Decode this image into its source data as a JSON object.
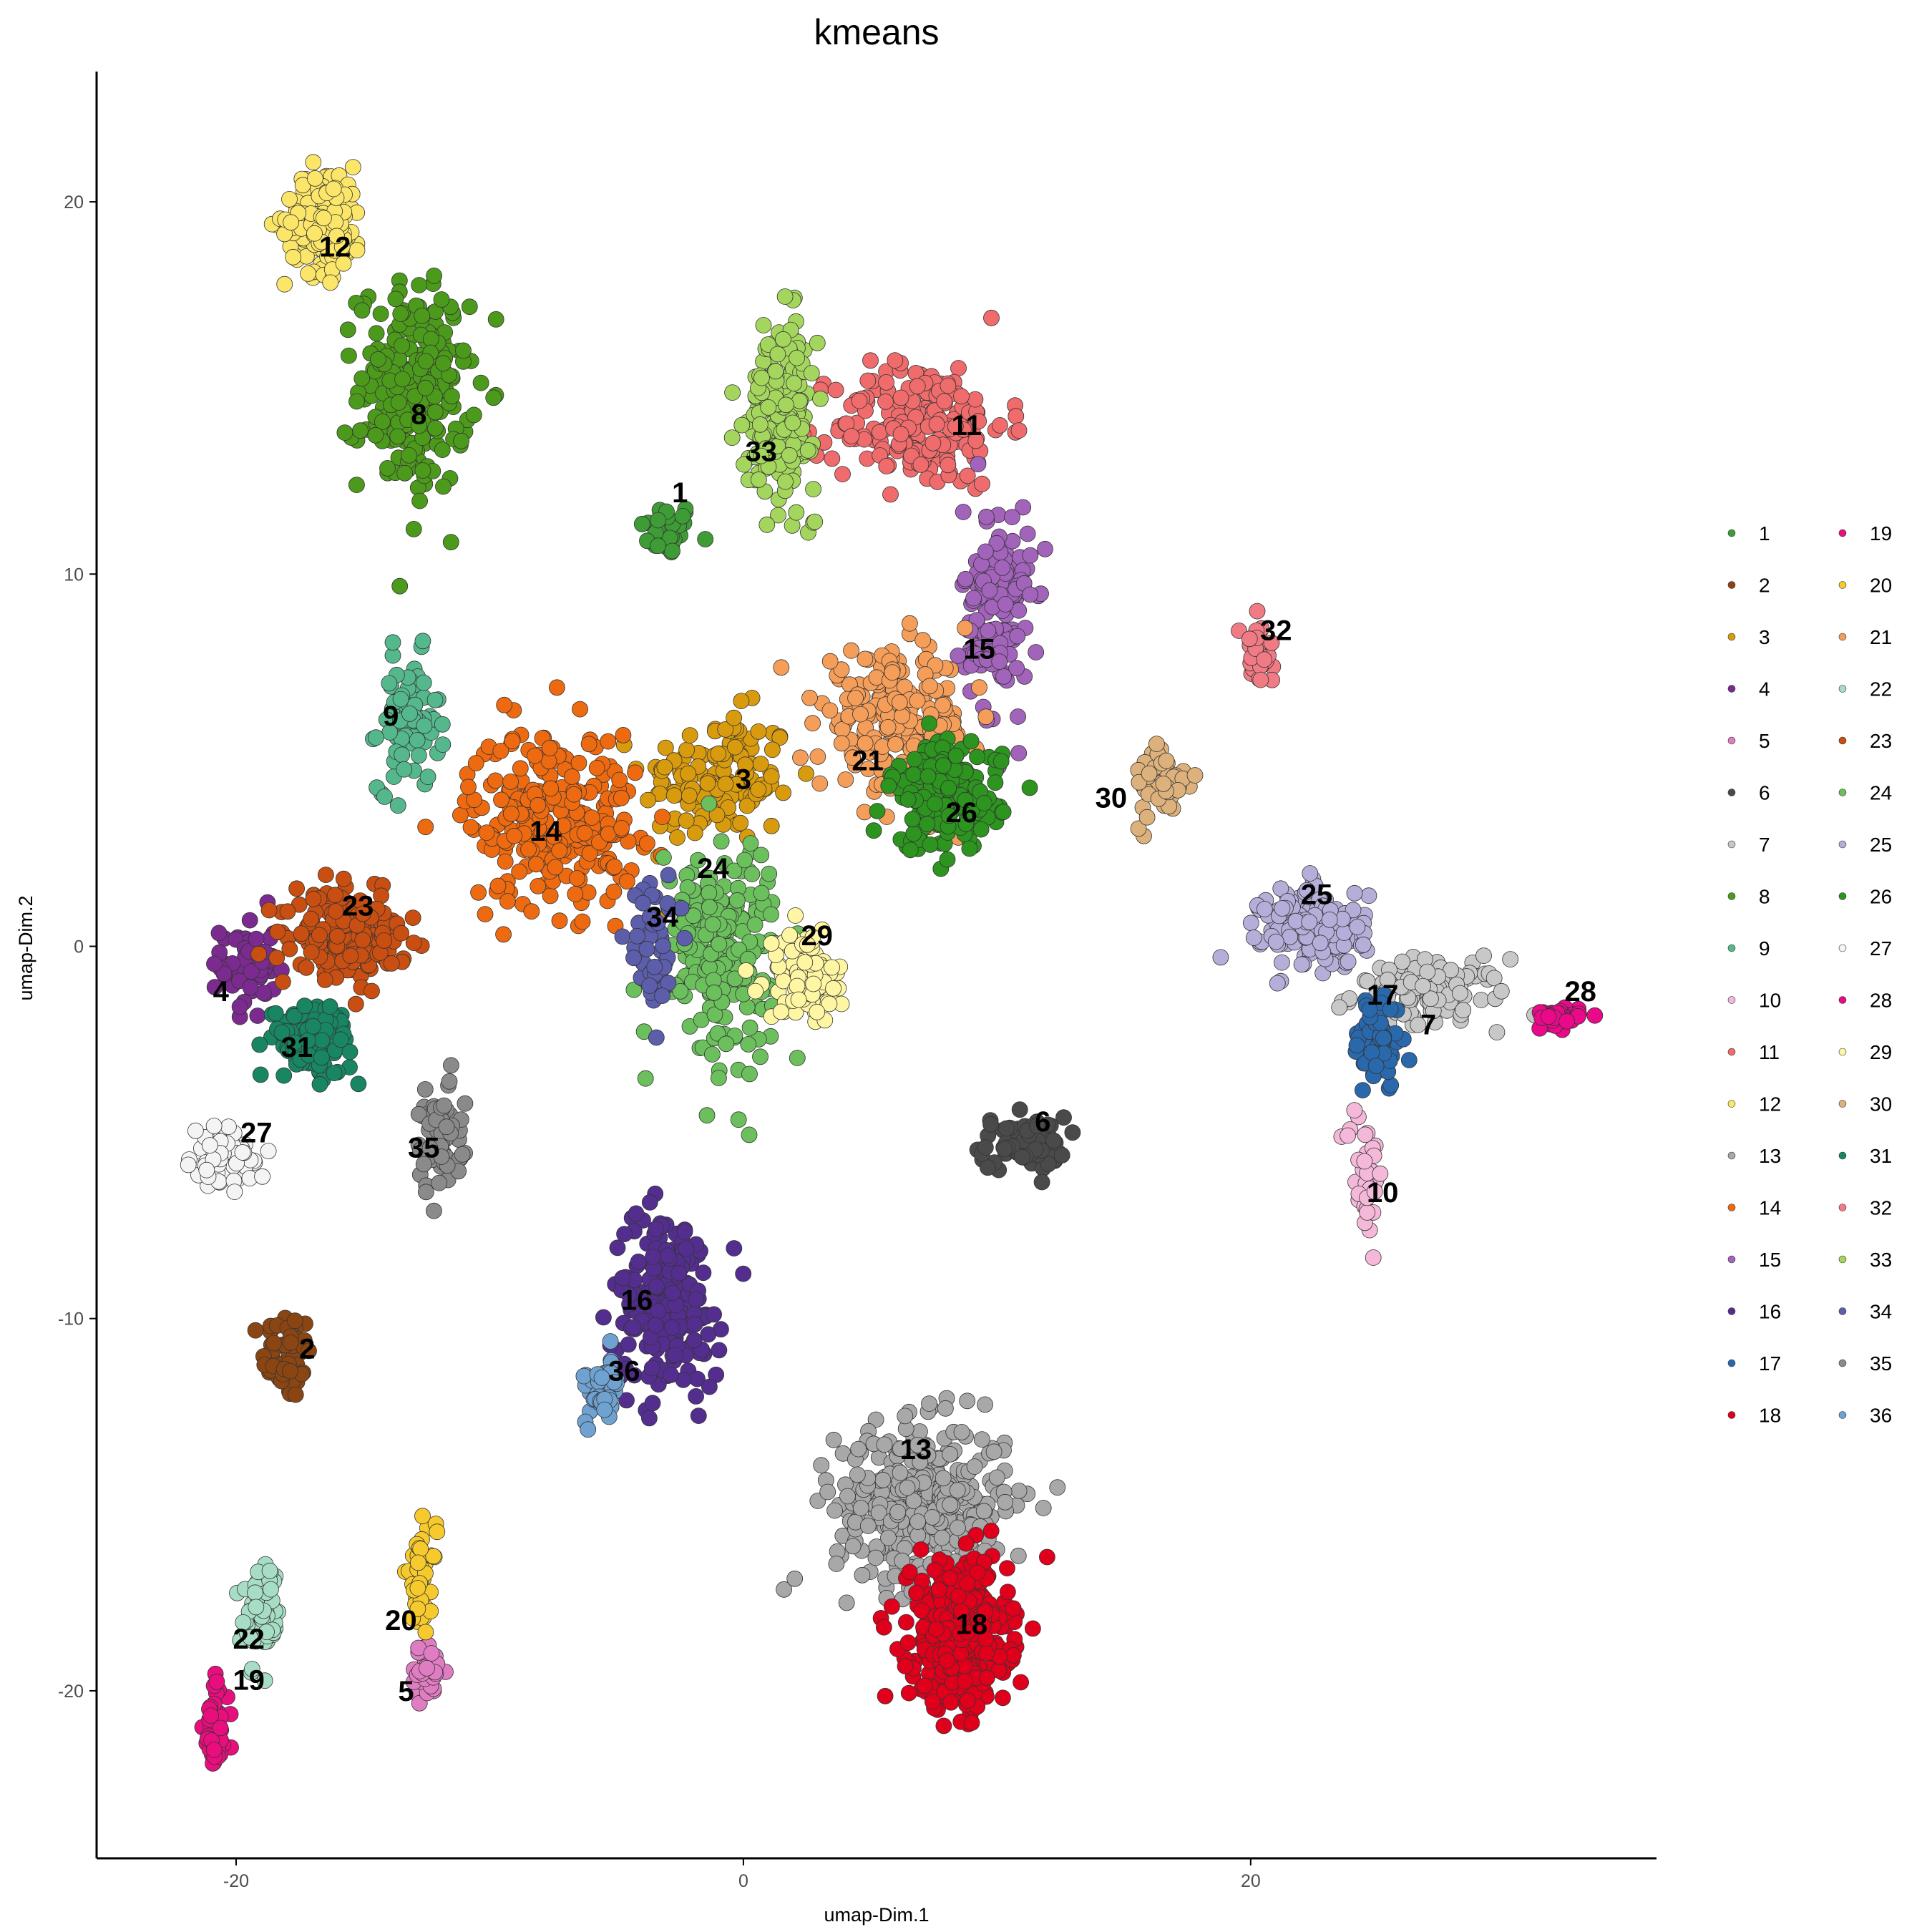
{
  "chart_data": {
    "type": "scatter",
    "title": "kmeans",
    "xlabel": "umap-Dim.1",
    "ylabel": "umap-Dim.2",
    "xlim": [
      -25.5,
      36
    ],
    "ylim": [
      -24.5,
      23.5
    ],
    "x_ticks": [
      -20,
      0,
      20
    ],
    "y_ticks": [
      20,
      10,
      0,
      -10,
      -20
    ],
    "grid": false,
    "legend_position": "right",
    "series": [
      {
        "name": "1",
        "color": "#3E9C36",
        "center": [
          -3,
          11.2
        ],
        "spread": [
          0.9,
          0.6
        ],
        "n": 40
      },
      {
        "name": "2",
        "color": "#8B4513",
        "center": [
          -18,
          -11
        ],
        "spread": [
          0.8,
          1.0
        ],
        "n": 55
      },
      {
        "name": "3",
        "color": "#D99B0E",
        "center": [
          -1,
          4.5
        ],
        "spread": [
          2.5,
          1.5
        ],
        "n": 140
      },
      {
        "name": "4",
        "color": "#7B2B8F",
        "center": [
          -19.5,
          -0.5
        ],
        "spread": [
          0.9,
          1.2
        ],
        "n": 55
      },
      {
        "name": "5",
        "color": "#E07CC2",
        "center": [
          -12.5,
          -19.5
        ],
        "spread": [
          0.6,
          0.6
        ],
        "n": 40
      },
      {
        "name": "6",
        "color": "#4A4A4A",
        "center": [
          11,
          -5.3
        ],
        "spread": [
          1.4,
          0.6
        ],
        "n": 70
      },
      {
        "name": "7",
        "color": "#C8C8C8",
        "center": [
          27,
          -1.3
        ],
        "spread": [
          2.5,
          0.8
        ],
        "n": 110
      },
      {
        "name": "8",
        "color": "#4C9A1B",
        "center": [
          -13,
          15
        ],
        "spread": [
          1.8,
          2.3
        ],
        "n": 230
      },
      {
        "name": "9",
        "color": "#55B88D",
        "center": [
          -13.2,
          6
        ],
        "spread": [
          1.0,
          1.5
        ],
        "n": 80
      },
      {
        "name": "10",
        "color": "#F4B8D8",
        "center": [
          24.5,
          -6
        ],
        "spread": [
          0.6,
          1.5
        ],
        "n": 40
      },
      {
        "name": "11",
        "color": "#F06B6B",
        "center": [
          7,
          14
        ],
        "spread": [
          2.8,
          1.4
        ],
        "n": 200
      },
      {
        "name": "12",
        "color": "#FCE66A",
        "center": [
          -16.5,
          19.5
        ],
        "spread": [
          1.3,
          1.2
        ],
        "n": 150
      },
      {
        "name": "13",
        "color": "#A8A8A8",
        "center": [
          7,
          -15
        ],
        "spread": [
          2.8,
          1.8
        ],
        "n": 380
      },
      {
        "name": "14",
        "color": "#EE6A10",
        "center": [
          -7.5,
          3.5
        ],
        "spread": [
          2.8,
          2.0
        ],
        "n": 260
      },
      {
        "name": "15",
        "color": "#A263BA",
        "center": [
          10,
          9
        ],
        "spread": [
          1.1,
          2.4
        ],
        "n": 150
      },
      {
        "name": "16",
        "color": "#542E8F",
        "center": [
          -3,
          -9.5
        ],
        "spread": [
          1.8,
          2.0
        ],
        "n": 200
      },
      {
        "name": "17",
        "color": "#2A68AC",
        "center": [
          25,
          -2.5
        ],
        "spread": [
          0.8,
          1.1
        ],
        "n": 70
      },
      {
        "name": "18",
        "color": "#E0001B",
        "center": [
          8.5,
          -18.5
        ],
        "spread": [
          1.6,
          1.6
        ],
        "n": 420
      },
      {
        "name": "19",
        "color": "#E80E7D",
        "center": [
          -20.8,
          -21
        ],
        "spread": [
          0.4,
          1.2
        ],
        "n": 45
      },
      {
        "name": "20",
        "color": "#F6CA2D",
        "center": [
          -12.7,
          -17
        ],
        "spread": [
          0.5,
          1.1
        ],
        "n": 45
      },
      {
        "name": "21",
        "color": "#F59E5A",
        "center": [
          6,
          6
        ],
        "spread": [
          2.5,
          1.5
        ],
        "n": 220
      },
      {
        "name": "22",
        "color": "#A6DDC4",
        "center": [
          -19,
          -18
        ],
        "spread": [
          0.6,
          1.1
        ],
        "n": 70
      },
      {
        "name": "23",
        "color": "#C84E11",
        "center": [
          -15.5,
          0.3
        ],
        "spread": [
          1.8,
          0.9
        ],
        "n": 220
      },
      {
        "name": "24",
        "color": "#6BBF5C",
        "center": [
          -1,
          0
        ],
        "spread": [
          2.0,
          2.4
        ],
        "n": 210
      },
      {
        "name": "25",
        "color": "#B4AED9",
        "center": [
          22.5,
          0.5
        ],
        "spread": [
          1.7,
          0.9
        ],
        "n": 170
      },
      {
        "name": "26",
        "color": "#2C941F",
        "center": [
          8,
          4
        ],
        "spread": [
          1.8,
          1.2
        ],
        "n": 190
      },
      {
        "name": "27",
        "color": "#F4F4F4",
        "center": [
          -20.5,
          -5.7
        ],
        "spread": [
          1.0,
          0.6
        ],
        "n": 70
      },
      {
        "name": "28",
        "color": "#E90989",
        "center": [
          32,
          -1.9
        ],
        "spread": [
          0.8,
          0.2
        ],
        "n": 50
      },
      {
        "name": "29",
        "color": "#FEF6A2",
        "center": [
          2.5,
          -0.8
        ],
        "spread": [
          1.3,
          1.0
        ],
        "n": 80
      },
      {
        "name": "30",
        "color": "#DCB17B",
        "center": [
          16.5,
          4.3
        ],
        "spread": [
          0.9,
          1.0
        ],
        "n": 50
      },
      {
        "name": "31",
        "color": "#188663",
        "center": [
          -17,
          -2.5
        ],
        "spread": [
          1.3,
          0.8
        ],
        "n": 130
      },
      {
        "name": "32",
        "color": "#F07B84",
        "center": [
          20.3,
          7.9
        ],
        "spread": [
          0.5,
          0.6
        ],
        "n": 35
      },
      {
        "name": "33",
        "color": "#A4D65D",
        "center": [
          1.5,
          14.5
        ],
        "spread": [
          1.1,
          1.9
        ],
        "n": 200
      },
      {
        "name": "34",
        "color": "#5C5DAB",
        "center": [
          -3.5,
          0
        ],
        "spread": [
          0.8,
          1.5
        ],
        "n": 50
      },
      {
        "name": "35",
        "color": "#8A8A8A",
        "center": [
          -12,
          -5
        ],
        "spread": [
          0.8,
          1.3
        ],
        "n": 65
      },
      {
        "name": "36",
        "color": "#6FA1D1",
        "center": [
          -5.5,
          -12
        ],
        "spread": [
          0.6,
          0.7
        ],
        "n": 55
      }
    ],
    "annotations": [
      {
        "text": "1",
        "x": -2.5,
        "y": 12.2
      },
      {
        "text": "2",
        "x": -17.2,
        "y": -10.8
      },
      {
        "text": "3",
        "x": 0,
        "y": 4.5
      },
      {
        "text": "4",
        "x": -20.6,
        "y": -1.2
      },
      {
        "text": "5",
        "x": -13.3,
        "y": -20
      },
      {
        "text": "6",
        "x": 11.8,
        "y": -4.7
      },
      {
        "text": "7",
        "x": 27,
        "y": -2.1
      },
      {
        "text": "8",
        "x": -12.8,
        "y": 14.3
      },
      {
        "text": "9",
        "x": -13.9,
        "y": 6.2
      },
      {
        "text": "10",
        "x": 25.2,
        "y": -6.6
      },
      {
        "text": "11",
        "x": 8.8,
        "y": 14
      },
      {
        "text": "12",
        "x": -16.1,
        "y": 18.8
      },
      {
        "text": "13",
        "x": 6.8,
        "y": -13.5
      },
      {
        "text": "14",
        "x": -7.8,
        "y": 3.1
      },
      {
        "text": "15",
        "x": 9.3,
        "y": 8
      },
      {
        "text": "16",
        "x": -4.2,
        "y": -9.5
      },
      {
        "text": "17",
        "x": 25.2,
        "y": -1.3
      },
      {
        "text": "18",
        "x": 9,
        "y": -18.2
      },
      {
        "text": "19",
        "x": -19.5,
        "y": -19.7
      },
      {
        "text": "20",
        "x": -13.5,
        "y": -18.1
      },
      {
        "text": "21",
        "x": 4.9,
        "y": 5
      },
      {
        "text": "22",
        "x": -19.5,
        "y": -18.6
      },
      {
        "text": "23",
        "x": -15.2,
        "y": 1.1
      },
      {
        "text": "24",
        "x": -1.2,
        "y": 2.1
      },
      {
        "text": "25",
        "x": 22.6,
        "y": 1.4
      },
      {
        "text": "26",
        "x": 8.6,
        "y": 3.6
      },
      {
        "text": "27",
        "x": -19.2,
        "y": -5
      },
      {
        "text": "28",
        "x": 33,
        "y": -1.2
      },
      {
        "text": "29",
        "x": 2.9,
        "y": 0.3
      },
      {
        "text": "30",
        "x": 14.5,
        "y": 4
      },
      {
        "text": "31",
        "x": -17.6,
        "y": -2.7
      },
      {
        "text": "32",
        "x": 21,
        "y": 8.5
      },
      {
        "text": "33",
        "x": 0.7,
        "y": 13.3
      },
      {
        "text": "34",
        "x": -3.2,
        "y": 0.8
      },
      {
        "text": "35",
        "x": -12.6,
        "y": -5.4
      },
      {
        "text": "36",
        "x": -4.7,
        "y": -11.4
      }
    ]
  }
}
